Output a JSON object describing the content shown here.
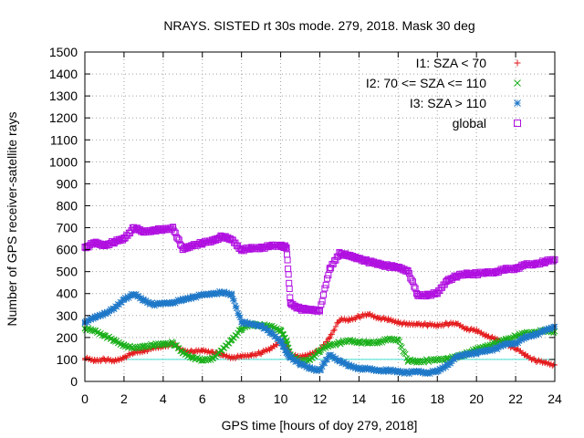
{
  "chart_data": {
    "type": "scatter",
    "title": "NRAYS. SISTED rt 30s mode. 279, 2018. Mask 30 deg",
    "xlabel": "GPS time [hours of doy 279, 2018]",
    "ylabel": "Number of GPS receiver-satellite rays",
    "xlim": [
      0,
      24
    ],
    "ylim": [
      0,
      1500
    ],
    "xticks": [
      0,
      2,
      4,
      6,
      8,
      10,
      12,
      14,
      16,
      18,
      20,
      22,
      24
    ],
    "yticks": [
      0,
      100,
      200,
      300,
      400,
      500,
      600,
      700,
      800,
      900,
      1000,
      1100,
      1200,
      1300,
      1400,
      1500
    ],
    "xtick_labels": [
      "0",
      "2",
      "4",
      "6",
      "8",
      "10",
      "12",
      "14",
      "16",
      "18",
      "20",
      "22",
      "24"
    ],
    "ytick_labels": [
      "0",
      "100",
      "200",
      "300",
      "400",
      "500",
      "600",
      "700",
      "800",
      "900",
      "1000",
      "1100",
      "1200",
      "1300",
      "1400",
      "1500"
    ],
    "grid": true,
    "legend_position": "top-right",
    "reference_line": {
      "y": 100,
      "color": "#40e0d0"
    },
    "series": [
      {
        "name": "I1: SZA < 70",
        "marker": "+",
        "color": "#e41a1c",
        "points": [
          [
            0,
            105
          ],
          [
            0.5,
            95
          ],
          [
            1,
            100
          ],
          [
            1.5,
            92
          ],
          [
            2,
            110
          ],
          [
            2.5,
            130
          ],
          [
            3,
            140
          ],
          [
            3.5,
            150
          ],
          [
            4,
            160
          ],
          [
            4.5,
            170
          ],
          [
            5,
            140
          ],
          [
            5.5,
            135
          ],
          [
            6,
            140
          ],
          [
            6.5,
            135
          ],
          [
            7,
            120
          ],
          [
            7.5,
            110
          ],
          [
            8,
            112
          ],
          [
            8.5,
            120
          ],
          [
            9,
            130
          ],
          [
            9.5,
            150
          ],
          [
            10,
            185
          ],
          [
            10.3,
            160
          ],
          [
            10.5,
            120
          ],
          [
            11,
            110
          ],
          [
            11.5,
            125
          ],
          [
            12,
            140
          ],
          [
            12.5,
            200
          ],
          [
            13,
            280
          ],
          [
            13.5,
            280
          ],
          [
            14,
            295
          ],
          [
            14.5,
            305
          ],
          [
            15,
            290
          ],
          [
            15.5,
            280
          ],
          [
            16,
            270
          ],
          [
            16.5,
            258
          ],
          [
            17,
            262
          ],
          [
            17.5,
            258
          ],
          [
            18,
            255
          ],
          [
            18.5,
            262
          ],
          [
            19,
            262
          ],
          [
            19.5,
            240
          ],
          [
            20,
            230
          ],
          [
            20.5,
            210
          ],
          [
            21,
            190
          ],
          [
            21.5,
            170
          ],
          [
            22,
            150
          ],
          [
            22.5,
            120
          ],
          [
            23,
            95
          ],
          [
            23.5,
            85
          ],
          [
            24,
            75
          ]
        ]
      },
      {
        "name": "I2: 70 <= SZA <= 110",
        "marker": "x",
        "color": "#1aaf1a",
        "points": [
          [
            0,
            240
          ],
          [
            0.5,
            230
          ],
          [
            1,
            210
          ],
          [
            1.5,
            185
          ],
          [
            2,
            165
          ],
          [
            2.5,
            150
          ],
          [
            3,
            160
          ],
          [
            3.5,
            165
          ],
          [
            4,
            170
          ],
          [
            4.5,
            175
          ],
          [
            5,
            130
          ],
          [
            5.5,
            110
          ],
          [
            6,
            95
          ],
          [
            6.5,
            105
          ],
          [
            7,
            140
          ],
          [
            7.5,
            190
          ],
          [
            8,
            240
          ],
          [
            8.5,
            260
          ],
          [
            9,
            255
          ],
          [
            9.5,
            250
          ],
          [
            10,
            235
          ],
          [
            10.3,
            180
          ],
          [
            10.5,
            120
          ],
          [
            11,
            90
          ],
          [
            11.5,
            100
          ],
          [
            12,
            140
          ],
          [
            12.5,
            165
          ],
          [
            13,
            175
          ],
          [
            13.5,
            185
          ],
          [
            14,
            180
          ],
          [
            14.5,
            175
          ],
          [
            15,
            180
          ],
          [
            15.5,
            190
          ],
          [
            16,
            190
          ],
          [
            16.5,
            95
          ],
          [
            17,
            90
          ],
          [
            17.5,
            95
          ],
          [
            18,
            98
          ],
          [
            18.5,
            105
          ],
          [
            19,
            110
          ],
          [
            19.5,
            130
          ],
          [
            20,
            145
          ],
          [
            20.5,
            160
          ],
          [
            21,
            175
          ],
          [
            21.5,
            190
          ],
          [
            22,
            205
          ],
          [
            22.5,
            220
          ],
          [
            23,
            225
          ],
          [
            23.5,
            230
          ],
          [
            24,
            228
          ]
        ]
      },
      {
        "name": "I3: SZA > 110",
        "marker": "*",
        "color": "#1f78c8",
        "points": [
          [
            0,
            270
          ],
          [
            0.5,
            290
          ],
          [
            1,
            310
          ],
          [
            1.5,
            330
          ],
          [
            2,
            375
          ],
          [
            2.5,
            398
          ],
          [
            3,
            370
          ],
          [
            3.5,
            350
          ],
          [
            4,
            355
          ],
          [
            4.5,
            360
          ],
          [
            5,
            370
          ],
          [
            5.5,
            385
          ],
          [
            6,
            392
          ],
          [
            6.5,
            400
          ],
          [
            7,
            405
          ],
          [
            7.5,
            395
          ],
          [
            8,
            270
          ],
          [
            8.5,
            260
          ],
          [
            9,
            255
          ],
          [
            9.5,
            220
          ],
          [
            10,
            185
          ],
          [
            10.3,
            130
          ],
          [
            10.5,
            110
          ],
          [
            11,
            80
          ],
          [
            11.5,
            60
          ],
          [
            12,
            50
          ],
          [
            12.5,
            120
          ],
          [
            13,
            95
          ],
          [
            13.5,
            70
          ],
          [
            14,
            60
          ],
          [
            14.5,
            55
          ],
          [
            15,
            50
          ],
          [
            15.5,
            50
          ],
          [
            16,
            45
          ],
          [
            16.5,
            40
          ],
          [
            17,
            45
          ],
          [
            17.5,
            40
          ],
          [
            18,
            45
          ],
          [
            18.5,
            75
          ],
          [
            19,
            110
          ],
          [
            19.5,
            125
          ],
          [
            20,
            130
          ],
          [
            20.5,
            140
          ],
          [
            21,
            150
          ],
          [
            21.5,
            170
          ],
          [
            22,
            175
          ],
          [
            22.5,
            200
          ],
          [
            23,
            215
          ],
          [
            23.5,
            230
          ],
          [
            24,
            250
          ]
        ]
      },
      {
        "name": "global",
        "marker": "square",
        "color": "#b010e0",
        "points": [
          [
            0,
            610
          ],
          [
            0.5,
            630
          ],
          [
            1,
            620
          ],
          [
            1.5,
            635
          ],
          [
            2,
            650
          ],
          [
            2.5,
            700
          ],
          [
            3,
            680
          ],
          [
            3.5,
            690
          ],
          [
            4,
            690
          ],
          [
            4.5,
            700
          ],
          [
            5,
            600
          ],
          [
            5.5,
            620
          ],
          [
            6,
            630
          ],
          [
            6.5,
            640
          ],
          [
            7,
            660
          ],
          [
            7.5,
            645
          ],
          [
            8,
            600
          ],
          [
            8.5,
            605
          ],
          [
            9,
            610
          ],
          [
            9.5,
            615
          ],
          [
            10,
            620
          ],
          [
            10.3,
            610
          ],
          [
            10.5,
            355
          ],
          [
            11,
            330
          ],
          [
            11.5,
            325
          ],
          [
            12,
            325
          ],
          [
            12.5,
            510
          ],
          [
            13,
            585
          ],
          [
            13.5,
            570
          ],
          [
            14,
            560
          ],
          [
            14.5,
            545
          ],
          [
            15,
            535
          ],
          [
            15.5,
            525
          ],
          [
            16,
            518
          ],
          [
            16.5,
            505
          ],
          [
            17,
            390
          ],
          [
            17.5,
            395
          ],
          [
            18,
            400
          ],
          [
            18.5,
            460
          ],
          [
            19,
            480
          ],
          [
            19.5,
            490
          ],
          [
            20,
            490
          ],
          [
            20.5,
            495
          ],
          [
            21,
            500
          ],
          [
            21.5,
            510
          ],
          [
            22,
            515
          ],
          [
            22.5,
            530
          ],
          [
            23,
            535
          ],
          [
            23.5,
            545
          ],
          [
            24,
            555
          ]
        ]
      }
    ]
  }
}
